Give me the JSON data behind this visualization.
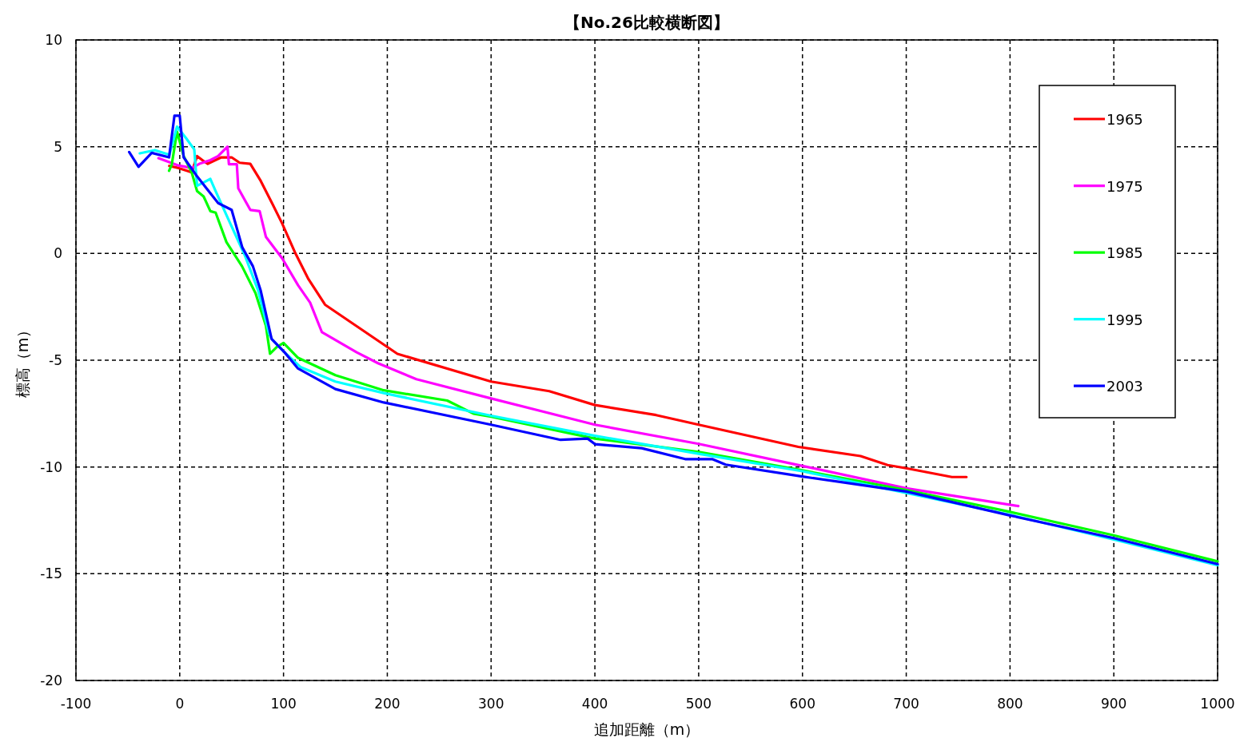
{
  "chart_data": {
    "type": "line",
    "title": "【No.26比較横断図】",
    "xlabel": "追加距離（m）",
    "ylabel": "標高（m）",
    "xlim": [
      -100,
      1000
    ],
    "ylim": [
      -20,
      10
    ],
    "xticks": [
      -100,
      0,
      100,
      200,
      300,
      400,
      500,
      600,
      700,
      800,
      900,
      1000
    ],
    "yticks": [
      -20,
      -15,
      -10,
      -5,
      0,
      5,
      10
    ],
    "grid": true,
    "legend": "top right",
    "marker": "none",
    "line_style": "solid",
    "series": [
      {
        "name": "1965",
        "color": "#ff0000",
        "x": [
          -10,
          -1,
          11.5,
          16.7,
          21.8,
          27,
          40,
          50,
          57.7,
          68,
          78,
          88.5,
          98.7,
          111.5,
          124,
          140,
          209.7,
          300,
          356,
          400,
          459,
          500,
          596,
          656,
          682,
          700,
          744,
          758
        ],
        "values": [
          4.1,
          4.0,
          3.8,
          4.56,
          4.37,
          4.2,
          4.5,
          4.5,
          4.25,
          4.2,
          3.4,
          2.4,
          1.4,
          0.0,
          -1.2,
          -2.4,
          -4.7,
          -6.0,
          -6.45,
          -7.1,
          -7.57,
          -8.02,
          -9.06,
          -9.49,
          -9.91,
          -10.06,
          -10.47,
          -10.47
        ]
      },
      {
        "name": "1975",
        "color": "#ff00ff",
        "x": [
          -20.5,
          -1.3,
          11.5,
          19,
          29.5,
          37,
          46,
          47.4,
          55,
          56.4,
          68,
          77,
          83,
          98.7,
          114,
          125.6,
          137,
          152.6,
          170.5,
          191,
          228,
          300,
          400,
          500,
          600,
          700,
          808
        ],
        "values": [
          4.46,
          4.12,
          4.0,
          4.2,
          4.37,
          4.56,
          5.0,
          4.18,
          4.18,
          3.05,
          2.04,
          1.98,
          0.78,
          -0.23,
          -1.49,
          -2.3,
          -3.69,
          -4.13,
          -4.63,
          -5.14,
          -5.89,
          -6.79,
          -8.02,
          -8.92,
          -9.95,
          -11.0,
          -11.83
        ]
      },
      {
        "name": "1985",
        "color": "#00ff00",
        "x": [
          -10.3,
          -7.7,
          -2.6,
          3.8,
          11.5,
          16.7,
          23,
          29.5,
          34.6,
          45,
          60,
          73,
          83,
          87,
          93.6,
          100,
          114,
          150,
          196.6,
          257.7,
          283,
          300,
          400,
          500,
          600,
          700,
          800,
          900,
          1000
        ],
        "values": [
          3.87,
          4.16,
          5.7,
          4.56,
          3.8,
          2.92,
          2.67,
          1.98,
          1.91,
          0.53,
          -0.6,
          -1.86,
          -3.38,
          -4.7,
          -4.38,
          -4.19,
          -4.89,
          -5.7,
          -6.41,
          -6.89,
          -7.5,
          -7.64,
          -8.67,
          -9.3,
          -10.16,
          -11.08,
          -12.1,
          -13.2,
          -14.42
        ]
      },
      {
        "name": "1995",
        "color": "#00ffff",
        "x": [
          -38.5,
          -24,
          -10,
          -2.6,
          6.4,
          14,
          16.7,
          29.5,
          34.6,
          47.4,
          62.8,
          75.6,
          86,
          88.5,
          101,
          116.7,
          150,
          196.6,
          300,
          400,
          500,
          600,
          700,
          800,
          900,
          1000
        ],
        "values": [
          4.69,
          4.84,
          4.62,
          5.94,
          5.38,
          4.87,
          3.17,
          3.49,
          2.92,
          1.54,
          -0.1,
          -1.74,
          -3.75,
          -4.0,
          -4.63,
          -5.33,
          -6.0,
          -6.54,
          -7.6,
          -8.54,
          -9.38,
          -10.2,
          -11.22,
          -12.24,
          -13.4,
          -14.6
        ]
      },
      {
        "name": "2003",
        "color": "#0000ff",
        "x": [
          -48.7,
          -39.7,
          -27,
          -10.3,
          -5.1,
          0,
          3.8,
          16.7,
          37,
          50,
          60.3,
          70.5,
          78,
          88.5,
          101,
          114,
          150,
          196.6,
          300,
          367,
          393,
          400,
          445,
          487,
          513,
          526,
          600,
          700,
          800,
          900,
          1000
        ],
        "values": [
          4.75,
          4.06,
          4.71,
          4.5,
          6.45,
          6.45,
          4.5,
          3.61,
          2.36,
          2.04,
          0.28,
          -0.6,
          -1.74,
          -4.0,
          -4.63,
          -5.39,
          -6.35,
          -6.98,
          -8.02,
          -8.73,
          -8.67,
          -8.93,
          -9.12,
          -9.63,
          -9.63,
          -9.89,
          -10.45,
          -11.15,
          -12.27,
          -13.33,
          -14.55
        ]
      }
    ]
  }
}
